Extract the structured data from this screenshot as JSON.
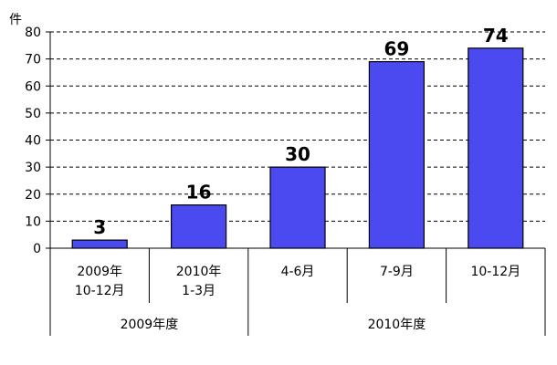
{
  "chart_data": {
    "type": "bar",
    "title": "",
    "xlabel": "",
    "ylabel": "件",
    "ylim": [
      0,
      80
    ],
    "yticks": [
      0,
      10,
      20,
      30,
      40,
      50,
      60,
      70,
      80
    ],
    "grid": "dashed-horizontal",
    "categories": [
      {
        "line1": "2009年",
        "line2": "10-12月"
      },
      {
        "line1": "2010年",
        "line2": "1-3月"
      },
      {
        "line1": "4-6月",
        "line2": ""
      },
      {
        "line1": "7-9月",
        "line2": ""
      },
      {
        "line1": "10-12月",
        "line2": ""
      }
    ],
    "values": [
      3,
      16,
      30,
      69,
      74
    ],
    "value_labels": [
      "3",
      "16",
      "30",
      "69",
      "74"
    ],
    "groups": [
      {
        "label": "2009年度",
        "span": [
          0,
          1
        ]
      },
      {
        "label": "2010年度",
        "span": [
          2,
          4
        ]
      }
    ],
    "colors": {
      "bar": "#4a4af0",
      "bar_stroke": "#000000"
    }
  }
}
